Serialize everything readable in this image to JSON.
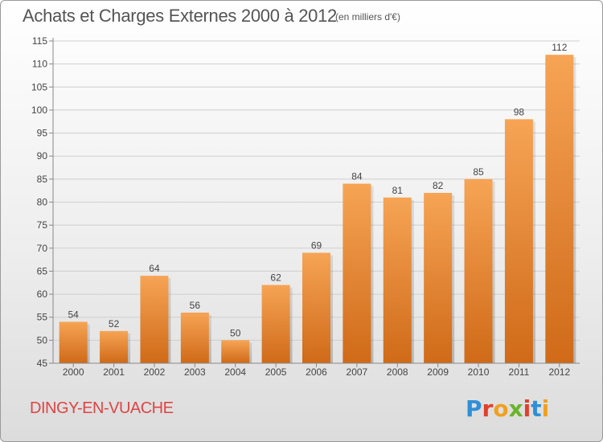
{
  "header": {
    "title": "Achats et Charges Externes 2000 à 2012",
    "subtitle": "(en milliers d'€)"
  },
  "footer": {
    "commune": "DINGY-EN-VUACHE",
    "logo_text": "Proxiti"
  },
  "colors": {
    "bar_light": "#f6a455",
    "bar_dark": "#cf6a18",
    "commune": "#e04444",
    "grid": "#cfcfcf"
  },
  "chart_data": {
    "type": "bar",
    "title": "Achats et Charges Externes 2000 à 2012",
    "subtitle": "(en milliers d'€)",
    "categories": [
      "2000",
      "2001",
      "2002",
      "2003",
      "2004",
      "2005",
      "2006",
      "2007",
      "2008",
      "2009",
      "2010",
      "2011",
      "2012"
    ],
    "values": [
      54,
      52,
      64,
      56,
      50,
      62,
      69,
      84,
      81,
      82,
      85,
      98,
      112
    ],
    "ylim": [
      45,
      115
    ],
    "yticks": [
      45,
      50,
      55,
      60,
      65,
      70,
      75,
      80,
      85,
      90,
      95,
      100,
      105,
      110,
      115
    ],
    "grid": true,
    "data_labels": true
  }
}
